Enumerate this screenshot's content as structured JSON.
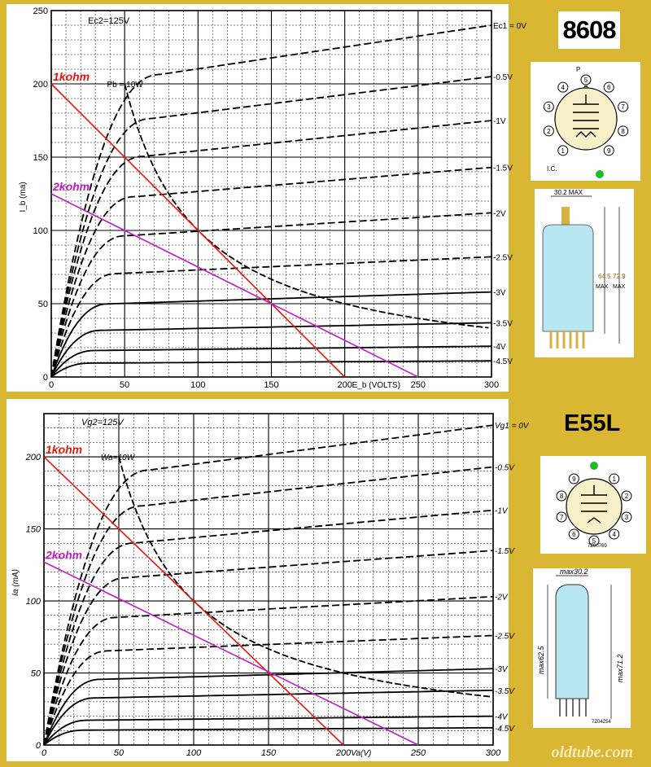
{
  "chart_data": [
    {
      "id": "top",
      "type": "line",
      "tube": "8608",
      "xlabel": "E_b (VOLTS)",
      "ylabel": "I_b (ma)",
      "xlim": [
        0,
        300
      ],
      "ylim": [
        0,
        250
      ],
      "xticks": [
        0,
        50,
        100,
        150,
        200,
        250,
        300
      ],
      "yticks": [
        0,
        50,
        100,
        150,
        200,
        250
      ],
      "screen_annotation": "Ec2=125V",
      "dissipation_label": "Pb = 10W",
      "grid": true,
      "series": [
        {
          "name": "Ec1 = 0V",
          "label": "Ec1 = 0V",
          "final": 240
        },
        {
          "name": "-0.5V",
          "label": "-0.5V",
          "final": 205
        },
        {
          "name": "-1V",
          "label": "-1V",
          "final": 175
        },
        {
          "name": "-1.5V",
          "label": "-1.5V",
          "final": 143
        },
        {
          "name": "-2V",
          "label": "-2V",
          "final": 112
        },
        {
          "name": "-2.5V",
          "label": "-2.5V",
          "final": 82
        },
        {
          "name": "-3V",
          "label": "-3V",
          "final": 58
        },
        {
          "name": "-3.5V",
          "label": "-3.5V",
          "final": 37
        },
        {
          "name": "-4V",
          "label": "-4V",
          "final": 21
        },
        {
          "name": "-4.5V",
          "label": "-4.5V",
          "final": 11
        }
      ],
      "load_lines": [
        {
          "name": "1kohm",
          "label": "1kohm",
          "color": "#e8150c",
          "points": [
            [
              0,
              200
            ],
            [
              200,
              0
            ]
          ]
        },
        {
          "name": "2kohm",
          "label": "2kohm",
          "color": "#c01dc7",
          "points": [
            [
              0,
              125
            ],
            [
              250,
              0
            ]
          ]
        }
      ]
    },
    {
      "id": "bottom",
      "type": "line",
      "tube": "E55L",
      "xlabel": "Va(V)",
      "ylabel": "Ia (mA)",
      "xlim": [
        0,
        300
      ],
      "ylim": [
        0,
        230
      ],
      "xticks": [
        0,
        50,
        100,
        150,
        200,
        250,
        300
      ],
      "yticks": [
        0,
        50,
        100,
        150,
        200
      ],
      "screen_annotation": "Vg2=125V",
      "dissipation_label": "Wa=10W",
      "grid": true,
      "series": [
        {
          "name": "Vg1 = 0V",
          "label": "Vg1 = 0V",
          "final": 222
        },
        {
          "name": "-0.5V",
          "label": "-0.5V",
          "final": 193
        },
        {
          "name": "-1V",
          "label": "-1V",
          "final": 163
        },
        {
          "name": "-1.5V",
          "label": "-1.5V",
          "final": 135
        },
        {
          "name": "-2V",
          "label": "-2V",
          "final": 103
        },
        {
          "name": "-2.5V",
          "label": "-2.5V",
          "final": 76
        },
        {
          "name": "-3V",
          "label": "-3V",
          "final": 53
        },
        {
          "name": "-3.5V",
          "label": "-3.5V",
          "final": 38
        },
        {
          "name": "-4V",
          "label": "-4V",
          "final": 20
        },
        {
          "name": "-4.5V",
          "label": "-4.5V",
          "final": 12
        }
      ],
      "load_lines": [
        {
          "name": "1kohm",
          "label": "1kohm",
          "color": "#e8150c",
          "points": [
            [
              0,
              200
            ],
            [
              200,
              0
            ]
          ]
        },
        {
          "name": "2kohm",
          "label": "2kohm",
          "color": "#c01dc7",
          "points": [
            [
              0,
              127
            ],
            [
              250,
              0
            ]
          ]
        }
      ]
    }
  ],
  "tubes": {
    "top_label": "8608",
    "bottom_label": "E55L",
    "top_dim_width": "30.2 MAX",
    "top_dim_h1": "64.5",
    "top_dim_h1_sub": "MAX",
    "top_dim_h2": "72.9",
    "top_dim_h2_sub": "MAX",
    "top_basing_ic": "I.C.",
    "top_pins": [
      "1",
      "2",
      "3",
      "4",
      "5",
      "6",
      "7",
      "8",
      "9"
    ],
    "bottom_pins": [
      "1",
      "2",
      "3",
      "4",
      "5",
      "6",
      "7",
      "8",
      "9"
    ],
    "bottom_dim_width": "max30.2",
    "bottom_dim_h1": "max62.5",
    "bottom_dim_h2": "max71.2",
    "bottom_code1": "7Z00769",
    "bottom_code2": "7Z04254"
  },
  "watermark": "oldtube.com",
  "colors": {
    "background": "#d9b733",
    "tube_glass": "#b8e7f2",
    "load_1k": "#e8150c",
    "load_2k": "#c01dc7",
    "pin_marker": "#22bb22",
    "gold_base": "#d4b245"
  }
}
